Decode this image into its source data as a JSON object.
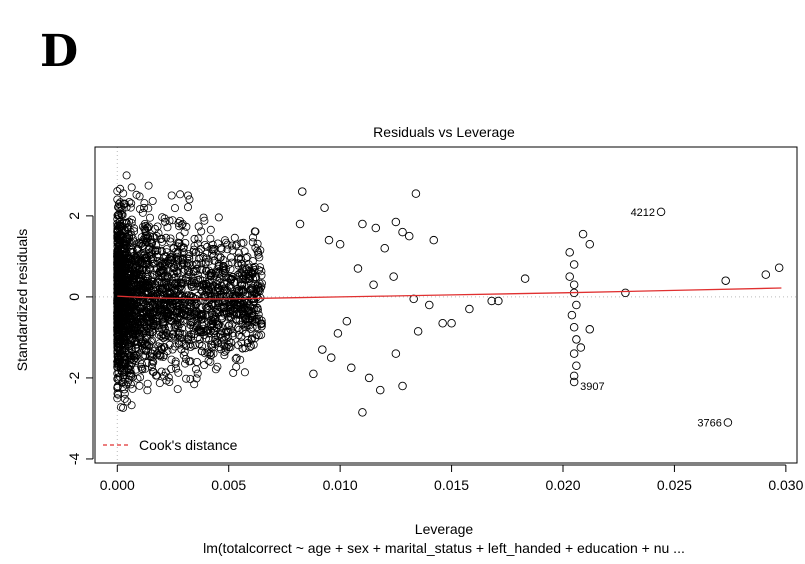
{
  "panel_label": "D",
  "chart_data": {
    "type": "scatter",
    "title": "Residuals vs Leverage",
    "xlabel": "Leverage",
    "ylabel": "Standardized residuals",
    "subtitle": "lm(totalcorrect ~ age + sex + marital_status + left_handed + education + nu ...",
    "xlim": [
      -0.001,
      0.0305
    ],
    "ylim": [
      -4.1,
      3.7
    ],
    "x_ticks": [
      0.0,
      0.005,
      0.01,
      0.015,
      0.02,
      0.025,
      0.03
    ],
    "x_tick_labels": [
      "0.000",
      "0.005",
      "0.010",
      "0.015",
      "0.020",
      "0.025",
      "0.030"
    ],
    "y_ticks": [
      -4,
      -2,
      0,
      2
    ],
    "y_tick_labels": [
      "-4",
      "-2",
      "0",
      "2"
    ],
    "reference_lines": {
      "x": 0,
      "y": 0,
      "style": "dotted",
      "color": "#bbbbbb"
    },
    "legend": {
      "entries": [
        "Cook's distance"
      ],
      "placement": "bottom-left",
      "line_color": "#e03030",
      "line_style": "dashed"
    },
    "smooth_line": {
      "name": "",
      "color": "#e03030",
      "x": [
        0.0,
        0.001,
        0.002,
        0.003,
        0.004,
        0.005,
        0.006,
        0.008,
        0.01,
        0.012,
        0.015,
        0.02,
        0.025,
        0.0298
      ],
      "y": [
        0.02,
        -0.01,
        -0.03,
        -0.04,
        -0.05,
        -0.05,
        -0.04,
        -0.02,
        0.0,
        0.02,
        0.05,
        0.1,
        0.16,
        0.22
      ]
    },
    "dense_cloud": {
      "description_free": true,
      "x_range": [
        0.0,
        0.0065
      ],
      "y_range": [
        -3.3,
        3.0
      ]
    },
    "points": [
      {
        "x": 0.0083,
        "y": 2.6
      },
      {
        "x": 0.0134,
        "y": 2.55
      },
      {
        "x": 0.0093,
        "y": 2.2
      },
      {
        "x": 0.0082,
        "y": 1.8
      },
      {
        "x": 0.0095,
        "y": 1.4
      },
      {
        "x": 0.01,
        "y": 1.3
      },
      {
        "x": 0.011,
        "y": 1.8
      },
      {
        "x": 0.0116,
        "y": 1.7
      },
      {
        "x": 0.0125,
        "y": 1.85
      },
      {
        "x": 0.0128,
        "y": 1.6
      },
      {
        "x": 0.0131,
        "y": 1.5
      },
      {
        "x": 0.0142,
        "y": 1.4
      },
      {
        "x": 0.012,
        "y": 1.2
      },
      {
        "x": 0.0108,
        "y": 0.7
      },
      {
        "x": 0.0115,
        "y": 0.3
      },
      {
        "x": 0.0124,
        "y": 0.5
      },
      {
        "x": 0.0133,
        "y": -0.05
      },
      {
        "x": 0.014,
        "y": -0.2
      },
      {
        "x": 0.0146,
        "y": -0.65
      },
      {
        "x": 0.015,
        "y": -0.65
      },
      {
        "x": 0.0158,
        "y": -0.3
      },
      {
        "x": 0.0168,
        "y": -0.1
      },
      {
        "x": 0.0171,
        "y": -0.1
      },
      {
        "x": 0.0183,
        "y": 0.45
      },
      {
        "x": 0.0135,
        "y": -0.85
      },
      {
        "x": 0.0125,
        "y": -1.4
      },
      {
        "x": 0.0118,
        "y": -2.3
      },
      {
        "x": 0.0113,
        "y": -2.0
      },
      {
        "x": 0.0105,
        "y": -1.75
      },
      {
        "x": 0.0096,
        "y": -1.5
      },
      {
        "x": 0.0092,
        "y": -1.3
      },
      {
        "x": 0.0088,
        "y": -1.9
      },
      {
        "x": 0.011,
        "y": -2.85
      },
      {
        "x": 0.0128,
        "y": -2.2
      },
      {
        "x": 0.0103,
        "y": -0.6
      },
      {
        "x": 0.0099,
        "y": -0.9
      },
      {
        "x": 0.0203,
        "y": 1.1
      },
      {
        "x": 0.0205,
        "y": 0.8
      },
      {
        "x": 0.0203,
        "y": 0.5
      },
      {
        "x": 0.0205,
        "y": 0.3
      },
      {
        "x": 0.0205,
        "y": 0.1
      },
      {
        "x": 0.0206,
        "y": -0.2
      },
      {
        "x": 0.0204,
        "y": -0.45
      },
      {
        "x": 0.0205,
        "y": -0.75
      },
      {
        "x": 0.0206,
        "y": -1.05
      },
      {
        "x": 0.0205,
        "y": -1.4
      },
      {
        "x": 0.0206,
        "y": -1.7
      },
      {
        "x": 0.0205,
        "y": -1.95
      },
      {
        "x": 0.0205,
        "y": -2.1
      },
      {
        "x": 0.0208,
        "y": -1.25
      },
      {
        "x": 0.0209,
        "y": 1.55
      },
      {
        "x": 0.0212,
        "y": 1.3
      },
      {
        "x": 0.0212,
        "y": -0.8
      },
      {
        "x": 0.0228,
        "y": 0.1
      },
      {
        "x": 0.0244,
        "y": 2.1
      },
      {
        "x": 0.0273,
        "y": 0.4
      },
      {
        "x": 0.0274,
        "y": -3.1
      },
      {
        "x": 0.0291,
        "y": 0.55
      },
      {
        "x": 0.0297,
        "y": 0.72
      }
    ],
    "point_labels": [
      {
        "text": "4212",
        "x": 0.0244,
        "y": 2.1,
        "side": "left"
      },
      {
        "text": "3907",
        "x": 0.0205,
        "y": -2.2,
        "side": "right"
      },
      {
        "text": "3766",
        "x": 0.0274,
        "y": -3.1,
        "side": "left"
      }
    ]
  }
}
